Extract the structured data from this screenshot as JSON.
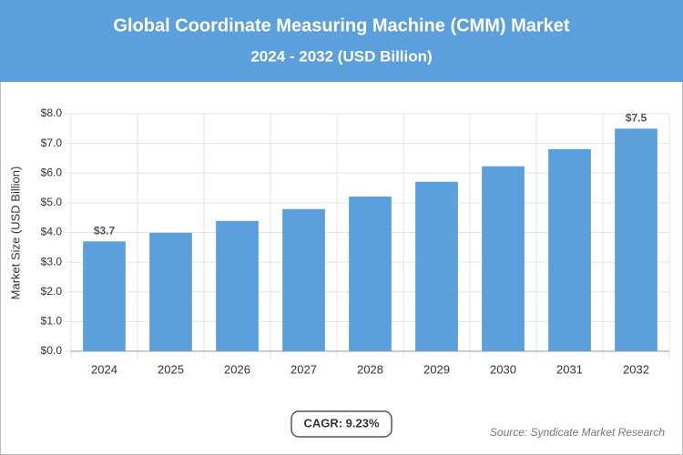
{
  "chart_data": {
    "type": "bar",
    "title": "Global Coordinate Measuring Machine (CMM) Market",
    "subtitle": "2024 - 2032 (USD Billion)",
    "y_label": "Market Size (USD Billion)",
    "categories": [
      "2024",
      "2025",
      "2026",
      "2027",
      "2028",
      "2029",
      "2030",
      "2031",
      "2032"
    ],
    "values": [
      3.7,
      3.99,
      4.39,
      4.79,
      5.21,
      5.71,
      6.23,
      6.81,
      7.5
    ],
    "value_labels": [
      "$3.7",
      null,
      null,
      null,
      null,
      null,
      null,
      null,
      "$7.5"
    ],
    "color": "#5b9fdc",
    "ylim": [
      0,
      8
    ],
    "yticks": [
      {
        "value": 0,
        "label": "$0.0"
      },
      {
        "value": 1,
        "label": "$1.0"
      },
      {
        "value": 2,
        "label": "$2.0"
      },
      {
        "value": 3,
        "label": "$3.0"
      },
      {
        "value": 4,
        "label": "$4.0"
      },
      {
        "value": 5,
        "label": "$5.0"
      },
      {
        "value": 6,
        "label": "$6.0"
      },
      {
        "value": 7,
        "label": "$7.0"
      },
      {
        "value": 8,
        "label": "$8.0"
      }
    ],
    "grid": true,
    "cagr": "CAGR: 9.23%",
    "source": "Source: Syndicate Market Research"
  }
}
